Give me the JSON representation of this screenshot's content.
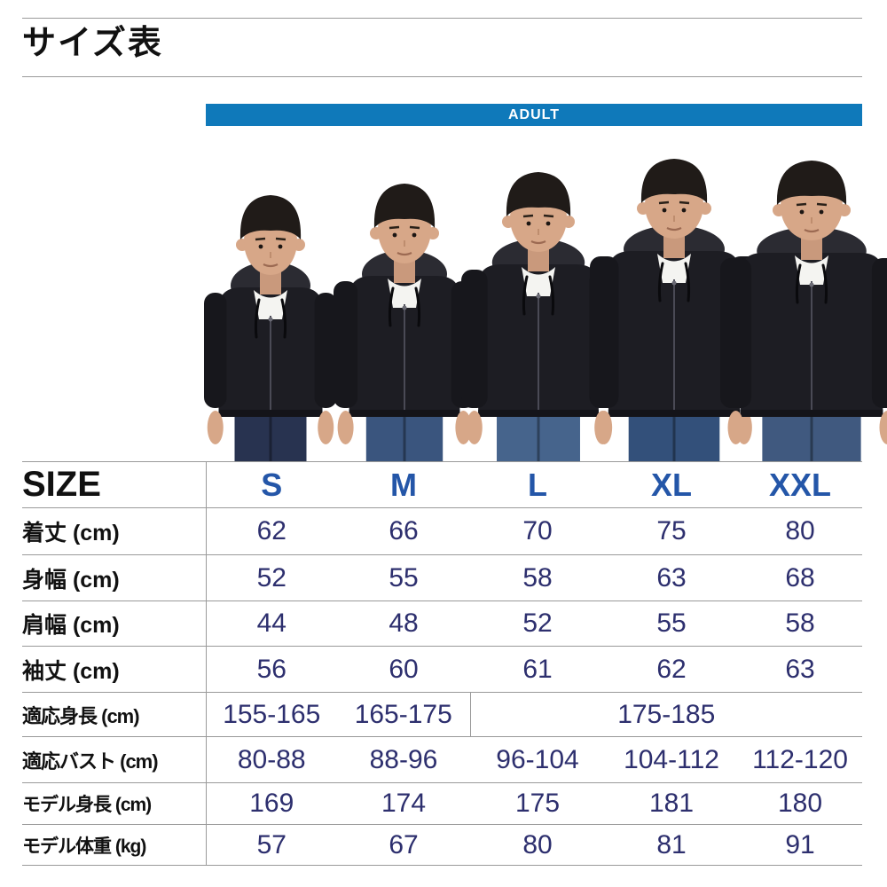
{
  "title": "サイズ表",
  "banner": {
    "label": "ADULT"
  },
  "colors": {
    "banner_blue": "#0f79ba",
    "size_letter_blue": "#2456a8",
    "value_navy": "#2d2f6e",
    "line_gray": "#9a9a9a",
    "label_black": "#111111"
  },
  "models": {
    "count": 5,
    "sizes_worn": [
      "S",
      "M",
      "L",
      "XL",
      "XXL"
    ]
  },
  "size_table": {
    "corner_label": "SIZE",
    "columns": [
      "S",
      "M",
      "L",
      "XL",
      "XXL"
    ],
    "rows": [
      {
        "label": "着丈 (cm)",
        "cells": [
          {
            "text": "62"
          },
          {
            "text": "66"
          },
          {
            "text": "70"
          },
          {
            "text": "75"
          },
          {
            "text": "80"
          }
        ]
      },
      {
        "label": "身幅 (cm)",
        "cells": [
          {
            "text": "52"
          },
          {
            "text": "55"
          },
          {
            "text": "58"
          },
          {
            "text": "63"
          },
          {
            "text": "68"
          }
        ]
      },
      {
        "label": "肩幅 (cm)",
        "cells": [
          {
            "text": "44"
          },
          {
            "text": "48"
          },
          {
            "text": "52"
          },
          {
            "text": "55"
          },
          {
            "text": "58"
          }
        ]
      },
      {
        "label": "袖丈 (cm)",
        "cells": [
          {
            "text": "56"
          },
          {
            "text": "60"
          },
          {
            "text": "61"
          },
          {
            "text": "62"
          },
          {
            "text": "63"
          }
        ]
      },
      {
        "label": "適応身長 (cm)",
        "cells": [
          {
            "text": "155-165"
          },
          {
            "text": "165-175"
          },
          {
            "text": "175-185",
            "colspan": 3
          }
        ]
      },
      {
        "label": "適応バスト (cm)",
        "cells": [
          {
            "text": "80-88"
          },
          {
            "text": "88-96"
          },
          {
            "text": "96-104"
          },
          {
            "text": "104-112"
          },
          {
            "text": "112-120"
          }
        ]
      },
      {
        "label": "モデル身長 (cm)",
        "cells": [
          {
            "text": "169"
          },
          {
            "text": "174"
          },
          {
            "text": "175"
          },
          {
            "text": "181"
          },
          {
            "text": "180"
          }
        ]
      },
      {
        "label": "モデル体重 (kg)",
        "cells": [
          {
            "text": "57"
          },
          {
            "text": "67"
          },
          {
            "text": "80"
          },
          {
            "text": "81"
          },
          {
            "text": "91"
          }
        ]
      }
    ]
  }
}
